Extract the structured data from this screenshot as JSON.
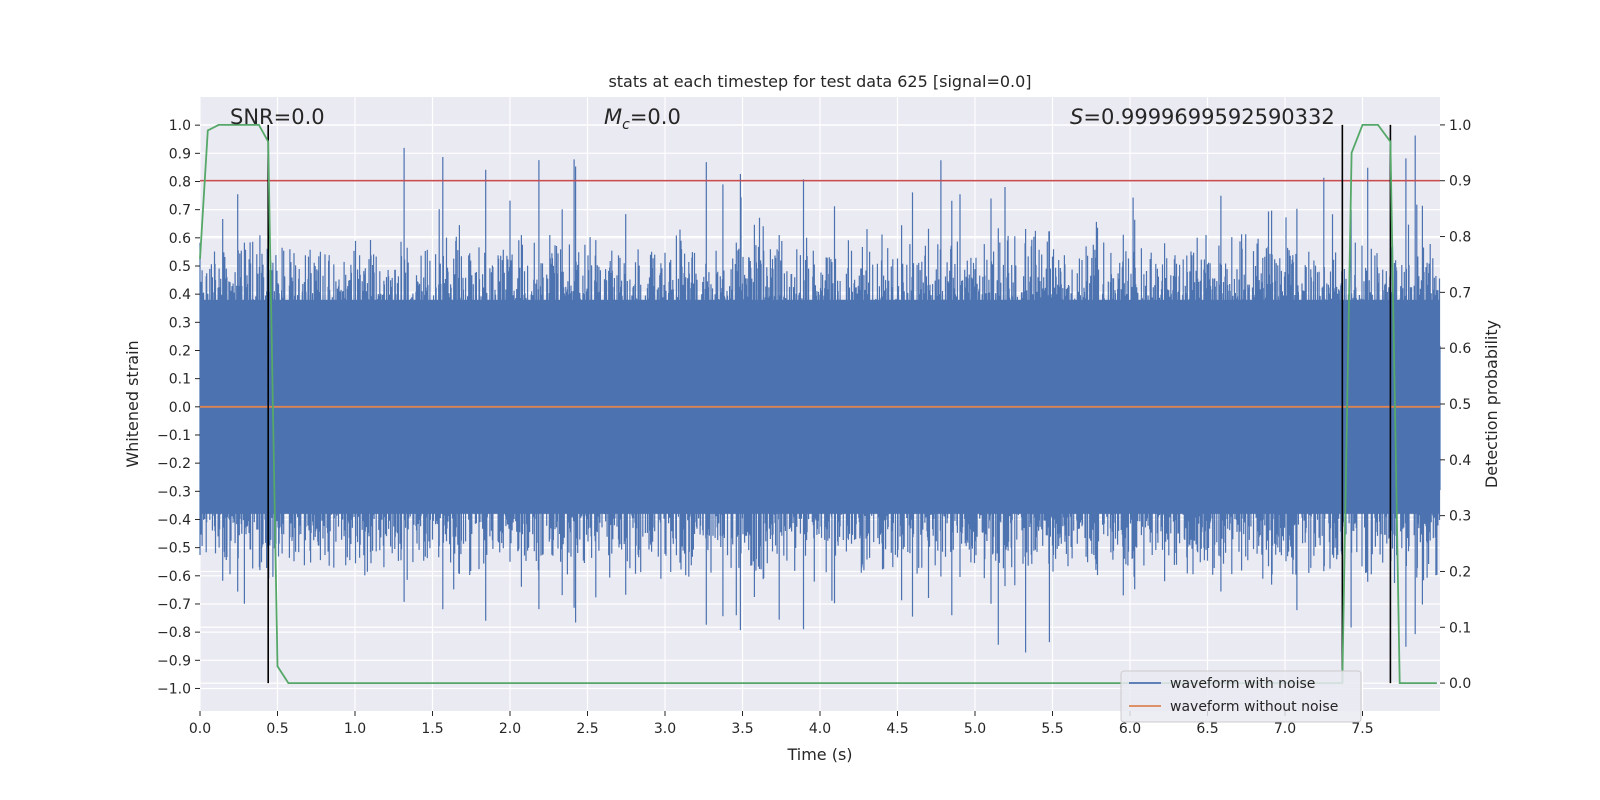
{
  "chart_data": {
    "type": "line",
    "title": "stats at each timestep for test data 625 [signal=0.0]",
    "xlabel": "Time (s)",
    "ylabel": "Whitened strain",
    "ylabel_right": "Detection probability",
    "xlim": [
      0.0,
      8.0
    ],
    "ylim": [
      -1.08,
      1.1
    ],
    "ylim_right": [
      -0.05,
      1.05
    ],
    "x_ticks": [
      0.0,
      0.5,
      1.0,
      1.5,
      2.0,
      2.5,
      3.0,
      3.5,
      4.0,
      4.5,
      5.0,
      5.5,
      6.0,
      6.5,
      7.0,
      7.5
    ],
    "x_tick_labels": [
      "0.0",
      "0.5",
      "1.0",
      "1.5",
      "2.0",
      "2.5",
      "3.0",
      "3.5",
      "4.0",
      "4.5",
      "5.0",
      "5.5",
      "6.0",
      "6.5",
      "7.0",
      "7.5"
    ],
    "y_ticks": [
      -1.0,
      -0.9,
      -0.8,
      -0.7,
      -0.6,
      -0.5,
      -0.4,
      -0.3,
      -0.2,
      -0.1,
      0.0,
      0.1,
      0.2,
      0.3,
      0.4,
      0.5,
      0.6,
      0.7,
      0.8,
      0.9,
      1.0
    ],
    "y_tick_labels": [
      "−1.0",
      "−0.9",
      "−0.8",
      "−0.7",
      "−0.6",
      "−0.5",
      "−0.4",
      "−0.3",
      "−0.2",
      "−0.1",
      "0.0",
      "0.1",
      "0.2",
      "0.3",
      "0.4",
      "0.5",
      "0.6",
      "0.7",
      "0.8",
      "0.9",
      "1.0"
    ],
    "y_right_ticks": [
      0.0,
      0.1,
      0.2,
      0.3,
      0.4,
      0.5,
      0.6,
      0.7,
      0.8,
      0.9,
      1.0
    ],
    "y_right_tick_labels": [
      "0.0",
      "0.1",
      "0.2",
      "0.3",
      "0.4",
      "0.5",
      "0.6",
      "0.7",
      "0.8",
      "0.9",
      "1.0"
    ],
    "annotations": {
      "snr": "SNR=0.0",
      "mc_symbol": "M",
      "mc_sub": "c",
      "mc_value": "=0.0",
      "s_symbol": "S",
      "s_value": "=0.9999699592590332"
    },
    "series": [
      {
        "name": "waveform with noise",
        "color": "#4c72b0",
        "axis": "left",
        "kind": "noise",
        "envelope_typical": 0.45,
        "envelope_peak": 1.0
      },
      {
        "name": "waveform without noise",
        "color": "#dd8452",
        "axis": "left",
        "kind": "constant",
        "value": 0.0
      },
      {
        "name": "detection probability",
        "color": "#55a868",
        "axis": "right",
        "x": [
          0.0,
          0.05,
          0.12,
          0.2,
          0.3,
          0.38,
          0.44,
          0.5,
          0.57,
          7.37,
          7.43,
          7.5,
          7.6,
          7.68,
          7.74,
          7.98
        ],
        "y": [
          0.76,
          0.99,
          1.0,
          1.0,
          1.0,
          1.0,
          0.97,
          0.03,
          0.0,
          0.0,
          0.95,
          1.0,
          1.0,
          0.97,
          0.0,
          0.0
        ]
      }
    ],
    "threshold": {
      "value": 0.9,
      "axis": "right",
      "color": "#c44e52"
    },
    "vertical_lines": [
      0.44,
      7.37,
      7.68
    ],
    "legend": {
      "position": "lower-right",
      "entries": [
        "waveform with noise",
        "waveform without noise"
      ]
    },
    "grid": true,
    "colors": {
      "background": "#eaeaf2",
      "grid": "#ffffff",
      "text": "#262626",
      "black": "#000000"
    }
  }
}
